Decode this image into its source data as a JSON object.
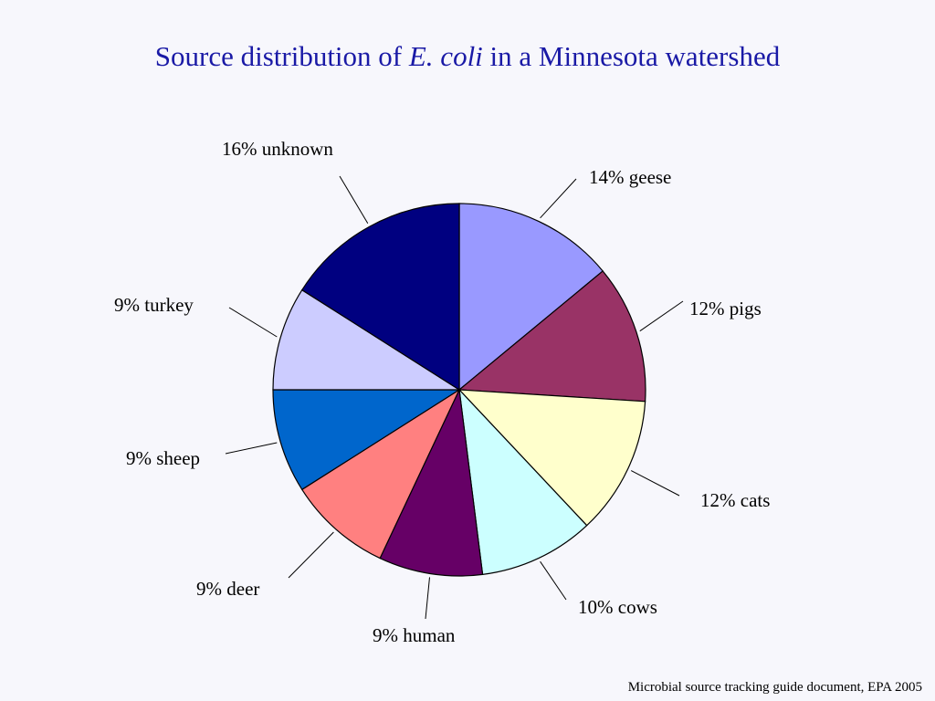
{
  "slide": {
    "title_pre": "Source distribution of ",
    "title_italic": "E. coli",
    "title_post": " in a Minnesota watershed",
    "source": "Microbial source tracking guide document, EPA 2005"
  },
  "chart_data": {
    "type": "pie",
    "title": "Source distribution of E. coli in a Minnesota watershed",
    "slices": [
      {
        "label": "14% geese",
        "value": 14,
        "color": "#9999ff"
      },
      {
        "label": "12% pigs",
        "value": 12,
        "color": "#993366"
      },
      {
        "label": "12% cats",
        "value": 12,
        "color": "#ffffcc"
      },
      {
        "label": "10% cows",
        "value": 10,
        "color": "#ccffff"
      },
      {
        "label": "9% human",
        "value": 9,
        "color": "#660066"
      },
      {
        "label": "9% deer",
        "value": 9,
        "color": "#ff8080"
      },
      {
        "label": "9% sheep",
        "value": 9,
        "color": "#0066cc"
      },
      {
        "label": "9% turkey",
        "value": 9,
        "color": "#ccccff"
      },
      {
        "label": "16% unknown",
        "value": 16,
        "color": "#000080"
      }
    ],
    "start": "12 o'clock",
    "direction": "clockwise",
    "legend": "none"
  }
}
